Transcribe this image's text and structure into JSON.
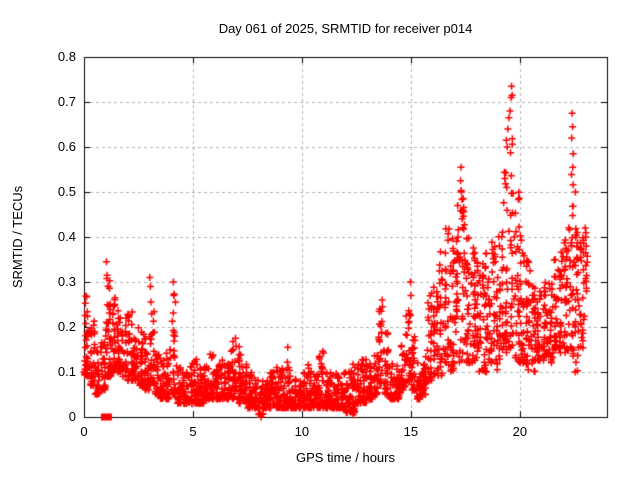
{
  "figure": {
    "title": "Day 061 of 2025, SRMTID for receiver p014",
    "xlabel": "GPS time / hours",
    "ylabel": "SRMTID / TECUs"
  },
  "chart_data": {
    "type": "scatter",
    "title": "Day 061 of 2025, SRMTID for receiver p014",
    "xlabel": "GPS time / hours",
    "ylabel": "SRMTID / TECUs",
    "xlim": [
      0,
      24
    ],
    "ylim": [
      0,
      0.8
    ],
    "xticks": [
      0,
      5,
      10,
      15,
      20
    ],
    "yticks": [
      0,
      0.1,
      0.2,
      0.3,
      0.4,
      0.5,
      0.6,
      0.7,
      0.8
    ],
    "grid": "dashed-major",
    "legend": "none",
    "marker": "plus",
    "marker_color": "#ff0000",
    "grid_color": "#b4b4b4",
    "border_color": "#000000",
    "gap_marker": {
      "shape": "filled-rect",
      "x_start": 0.78,
      "x_end": 1.28,
      "y": 0,
      "color": "#ff0000"
    },
    "outliers": [
      [
        1.03,
        0.345
      ],
      [
        1.06,
        0.315
      ],
      [
        3.02,
        0.31
      ],
      [
        3.05,
        0.29
      ],
      [
        4.1,
        0.3
      ],
      [
        4.12,
        0.27
      ],
      [
        6.95,
        0.175
      ],
      [
        8.1,
        0.005
      ],
      [
        8.13,
        0.0
      ],
      [
        9.35,
        0.155
      ],
      [
        12.35,
        0.005
      ],
      [
        13.68,
        0.26
      ],
      [
        13.7,
        0.245
      ],
      [
        14.98,
        0.3
      ],
      [
        15.0,
        0.27
      ],
      [
        17.3,
        0.555
      ],
      [
        17.28,
        0.525
      ],
      [
        17.32,
        0.5
      ],
      [
        19.38,
        0.615
      ],
      [
        19.42,
        0.6
      ],
      [
        19.45,
        0.64
      ],
      [
        19.5,
        0.665
      ],
      [
        19.55,
        0.68
      ],
      [
        19.6,
        0.71
      ],
      [
        19.62,
        0.735
      ],
      [
        19.65,
        0.715
      ],
      [
        22.38,
        0.62
      ],
      [
        22.4,
        0.675
      ],
      [
        22.42,
        0.645
      ],
      [
        22.45,
        0.585
      ],
      [
        22.43,
        0.555
      ],
      [
        22.55,
        0.5
      ],
      [
        23.0,
        0.42
      ],
      [
        23.02,
        0.4
      ],
      [
        23.05,
        0.38
      ]
    ],
    "density_envelope": {
      "description": "Dense cloud of red plus markers; each segment gives [t_start, t_end, v_min, v_max, n_points], values skewed toward v_min",
      "columns": [
        "t_start",
        "t_end",
        "v_min",
        "v_max",
        "n_points"
      ],
      "segments": [
        [
          0.0,
          0.25,
          0.09,
          0.27,
          34
        ],
        [
          0.25,
          0.5,
          0.07,
          0.22,
          30
        ],
        [
          0.5,
          0.75,
          0.05,
          0.15,
          28
        ],
        [
          0.75,
          1.0,
          0.06,
          0.17,
          28
        ],
        [
          1.0,
          1.25,
          0.09,
          0.31,
          36
        ],
        [
          1.25,
          1.5,
          0.1,
          0.28,
          32
        ],
        [
          1.5,
          1.75,
          0.1,
          0.24,
          28
        ],
        [
          1.75,
          2.0,
          0.09,
          0.22,
          28
        ],
        [
          2.0,
          2.25,
          0.08,
          0.24,
          28
        ],
        [
          2.25,
          2.5,
          0.08,
          0.2,
          30
        ],
        [
          2.5,
          2.75,
          0.07,
          0.19,
          30
        ],
        [
          2.75,
          3.0,
          0.06,
          0.18,
          28
        ],
        [
          3.0,
          3.25,
          0.07,
          0.29,
          30
        ],
        [
          3.25,
          3.5,
          0.05,
          0.15,
          28
        ],
        [
          3.5,
          3.75,
          0.04,
          0.14,
          28
        ],
        [
          3.75,
          4.0,
          0.04,
          0.15,
          28
        ],
        [
          4.0,
          4.25,
          0.05,
          0.28,
          30
        ],
        [
          4.25,
          4.5,
          0.03,
          0.11,
          28
        ],
        [
          4.5,
          4.75,
          0.03,
          0.1,
          28
        ],
        [
          4.75,
          5.0,
          0.03,
          0.12,
          30
        ],
        [
          5.0,
          5.25,
          0.03,
          0.13,
          30
        ],
        [
          5.25,
          5.5,
          0.03,
          0.11,
          30
        ],
        [
          5.5,
          5.75,
          0.04,
          0.12,
          30
        ],
        [
          5.75,
          6.0,
          0.04,
          0.14,
          30
        ],
        [
          6.0,
          6.25,
          0.04,
          0.12,
          30
        ],
        [
          6.25,
          6.5,
          0.04,
          0.13,
          30
        ],
        [
          6.5,
          6.75,
          0.04,
          0.12,
          30
        ],
        [
          6.75,
          7.0,
          0.04,
          0.17,
          30
        ],
        [
          7.0,
          7.25,
          0.03,
          0.16,
          30
        ],
        [
          7.25,
          7.5,
          0.03,
          0.12,
          30
        ],
        [
          7.5,
          7.75,
          0.02,
          0.1,
          30
        ],
        [
          7.75,
          8.0,
          0.02,
          0.09,
          30
        ],
        [
          8.0,
          8.25,
          0.005,
          0.08,
          28
        ],
        [
          8.25,
          8.5,
          0.02,
          0.09,
          30
        ],
        [
          8.5,
          8.75,
          0.02,
          0.1,
          30
        ],
        [
          8.75,
          9.0,
          0.02,
          0.11,
          30
        ],
        [
          9.0,
          9.25,
          0.02,
          0.12,
          30
        ],
        [
          9.25,
          9.5,
          0.02,
          0.15,
          30
        ],
        [
          9.5,
          9.75,
          0.02,
          0.1,
          30
        ],
        [
          9.75,
          10.0,
          0.02,
          0.09,
          30
        ],
        [
          10.0,
          10.25,
          0.02,
          0.1,
          30
        ],
        [
          10.25,
          10.5,
          0.02,
          0.13,
          30
        ],
        [
          10.5,
          10.75,
          0.02,
          0.11,
          30
        ],
        [
          10.75,
          11.0,
          0.02,
          0.15,
          30
        ],
        [
          11.0,
          11.25,
          0.02,
          0.1,
          30
        ],
        [
          11.25,
          11.5,
          0.02,
          0.1,
          30
        ],
        [
          11.5,
          11.75,
          0.02,
          0.11,
          30
        ],
        [
          11.75,
          12.0,
          0.02,
          0.1,
          30
        ],
        [
          12.0,
          12.25,
          0.01,
          0.11,
          30
        ],
        [
          12.25,
          12.5,
          0.01,
          0.12,
          30
        ],
        [
          12.5,
          12.75,
          0.03,
          0.12,
          30
        ],
        [
          12.75,
          13.0,
          0.03,
          0.13,
          30
        ],
        [
          13.0,
          13.25,
          0.04,
          0.12,
          30
        ],
        [
          13.25,
          13.5,
          0.05,
          0.14,
          28
        ],
        [
          13.5,
          13.75,
          0.06,
          0.25,
          28
        ],
        [
          13.75,
          14.0,
          0.05,
          0.2,
          26
        ],
        [
          14.0,
          14.25,
          0.04,
          0.13,
          26
        ],
        [
          14.25,
          14.5,
          0.04,
          0.12,
          26
        ],
        [
          14.5,
          14.75,
          0.06,
          0.16,
          26
        ],
        [
          14.75,
          15.0,
          0.08,
          0.24,
          26
        ],
        [
          15.0,
          15.25,
          0.06,
          0.18,
          26
        ],
        [
          15.25,
          15.5,
          0.04,
          0.12,
          26
        ],
        [
          15.5,
          15.75,
          0.05,
          0.14,
          26
        ],
        [
          15.75,
          16.0,
          0.08,
          0.28,
          28
        ],
        [
          16.0,
          16.25,
          0.09,
          0.3,
          28
        ],
        [
          16.25,
          16.5,
          0.09,
          0.38,
          28
        ],
        [
          16.5,
          16.75,
          0.1,
          0.42,
          28
        ],
        [
          16.75,
          17.0,
          0.1,
          0.4,
          28
        ],
        [
          17.0,
          17.25,
          0.12,
          0.48,
          30
        ],
        [
          17.25,
          17.5,
          0.12,
          0.52,
          30
        ],
        [
          17.5,
          17.75,
          0.12,
          0.4,
          28
        ],
        [
          17.75,
          18.0,
          0.12,
          0.38,
          28
        ],
        [
          18.0,
          18.25,
          0.1,
          0.36,
          28
        ],
        [
          18.25,
          18.5,
          0.1,
          0.38,
          28
        ],
        [
          18.5,
          18.75,
          0.12,
          0.4,
          28
        ],
        [
          18.75,
          19.0,
          0.1,
          0.38,
          28
        ],
        [
          19.0,
          19.25,
          0.12,
          0.45,
          28
        ],
        [
          19.25,
          19.5,
          0.14,
          0.58,
          30
        ],
        [
          19.5,
          19.75,
          0.15,
          0.62,
          30
        ],
        [
          19.75,
          20.0,
          0.12,
          0.5,
          28
        ],
        [
          20.0,
          20.25,
          0.12,
          0.42,
          28
        ],
        [
          20.25,
          20.5,
          0.1,
          0.35,
          28
        ],
        [
          20.5,
          20.75,
          0.1,
          0.3,
          28
        ],
        [
          20.75,
          21.0,
          0.12,
          0.28,
          28
        ],
        [
          21.0,
          21.25,
          0.12,
          0.3,
          28
        ],
        [
          21.25,
          21.5,
          0.12,
          0.32,
          28
        ],
        [
          21.5,
          21.75,
          0.13,
          0.35,
          28
        ],
        [
          21.75,
          22.0,
          0.12,
          0.38,
          28
        ],
        [
          22.0,
          22.25,
          0.14,
          0.4,
          28
        ],
        [
          22.25,
          22.5,
          0.1,
          0.55,
          30
        ],
        [
          22.5,
          22.75,
          0.1,
          0.42,
          28
        ],
        [
          22.75,
          23.0,
          0.15,
          0.4,
          26
        ],
        [
          23.0,
          23.1,
          0.28,
          0.42,
          10
        ]
      ]
    }
  }
}
